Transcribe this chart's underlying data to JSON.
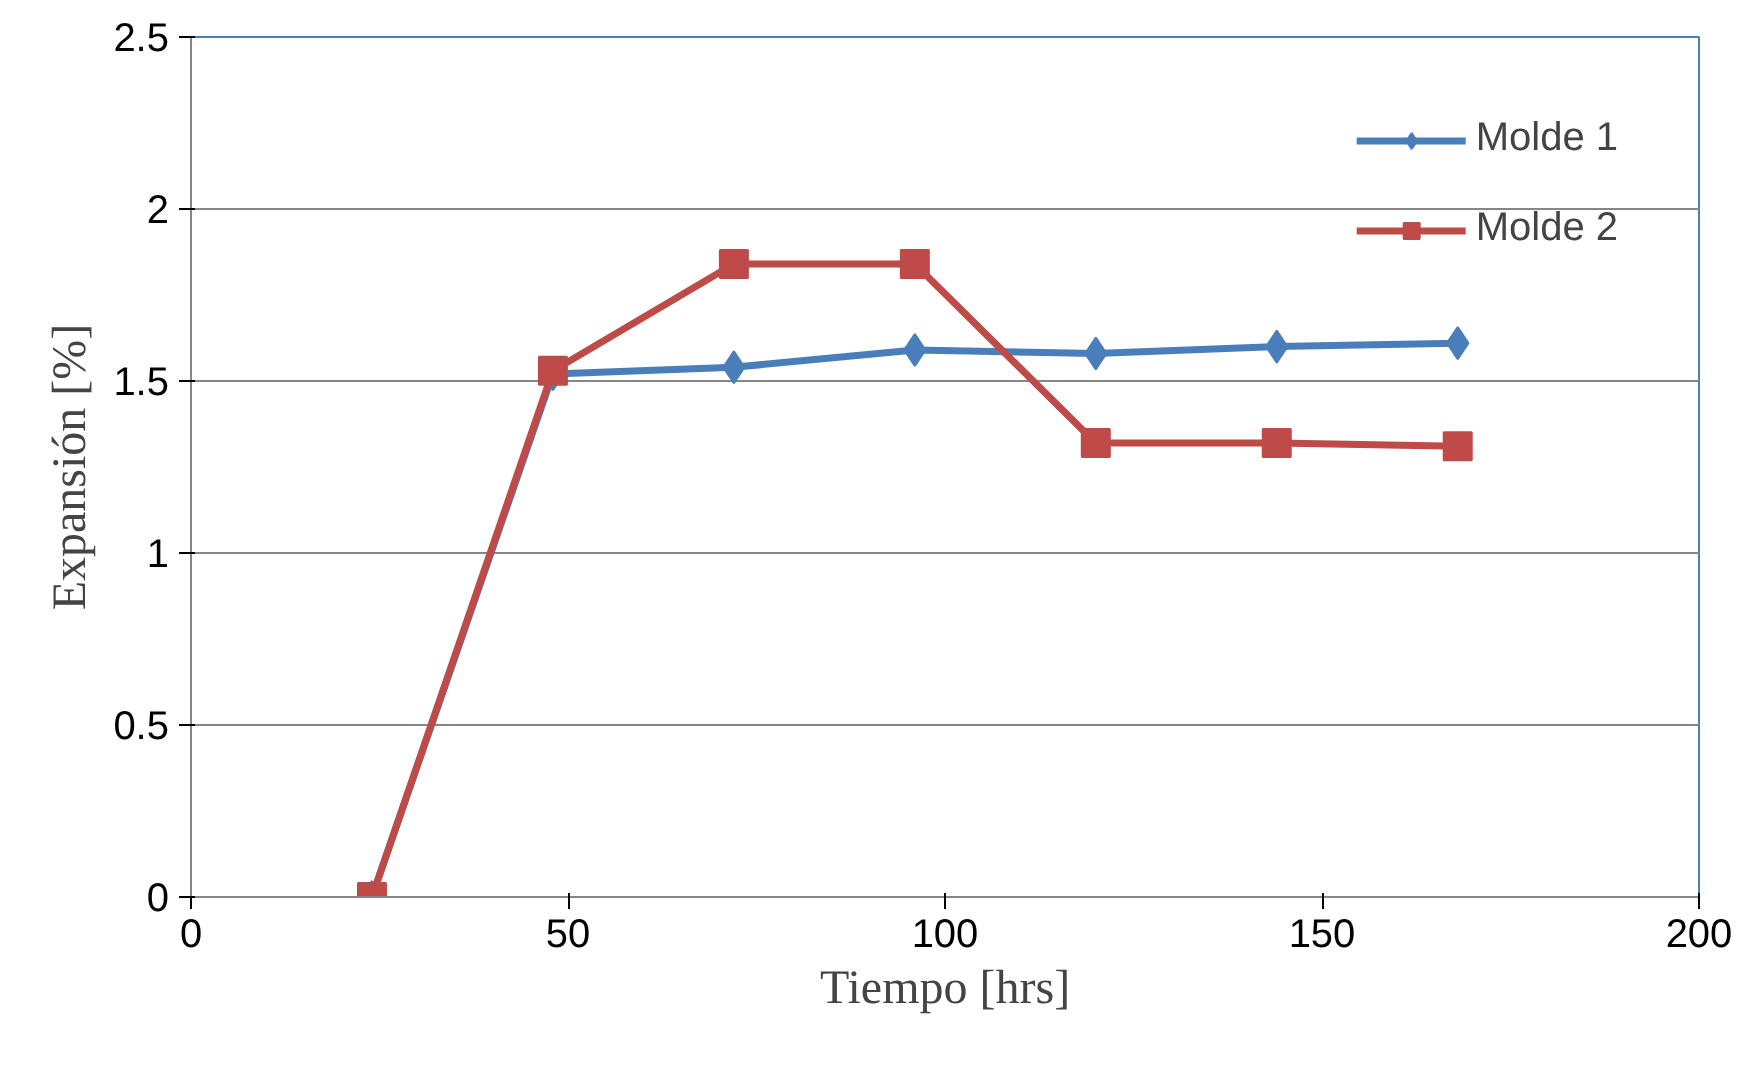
{
  "chart_data": {
    "type": "line",
    "xlabel": "Tiempo [hrs]",
    "ylabel": "Expansión [%]",
    "x": [
      24,
      48,
      72,
      96,
      120,
      144,
      168
    ],
    "series": [
      {
        "name": "Molde 1",
        "color": "#4a7ebb",
        "marker": "diamond",
        "values": [
          0,
          1.52,
          1.54,
          1.59,
          1.58,
          1.6,
          1.61
        ]
      },
      {
        "name": "Molde 2",
        "color": "#be4b48",
        "marker": "square",
        "values": [
          0,
          1.53,
          1.84,
          1.84,
          1.32,
          1.32,
          1.31
        ]
      }
    ],
    "xlim": [
      0,
      200
    ],
    "xticks": [
      0,
      50,
      100,
      150,
      200
    ],
    "ylim": [
      0,
      2.5
    ],
    "yticks": [
      0,
      0.5,
      1,
      1.5,
      2,
      2.5
    ],
    "grid": "y",
    "legend": "top right",
    "line_style": "solid"
  }
}
